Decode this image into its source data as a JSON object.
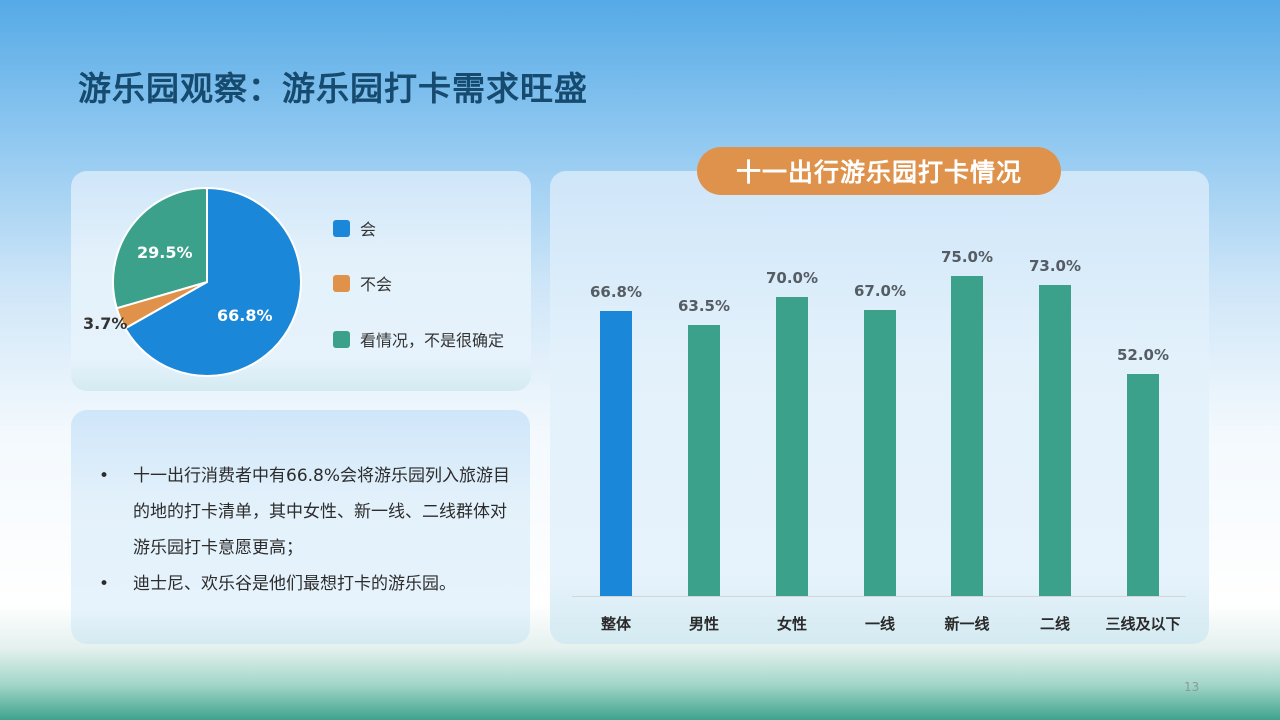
{
  "slide": {
    "title": "游乐园观察：游乐园打卡需求旺盛",
    "page_number": "13"
  },
  "pie": {
    "legend": [
      {
        "label": "会",
        "color": "#1b87d8"
      },
      {
        "label": "不会",
        "color": "#e0924a"
      },
      {
        "label": "看情况，不是很确定",
        "color": "#3ba18a"
      }
    ],
    "labels": {
      "yes": "66.8%",
      "no": "3.7%",
      "unsure": "29.5%"
    }
  },
  "summary": {
    "bullet_glyph": "•",
    "bullets": [
      "十一出行消费者中有66.8%会将游乐园列入旅游目的地的打卡清单，其中女性、新一线、二线群体对游乐园打卡意愿更高；",
      "迪士尼、欢乐谷是他们最想打卡的游乐园。"
    ]
  },
  "bar_chart": {
    "title": "十一出行游乐园打卡情况",
    "bars": [
      {
        "category": "整体",
        "label": "66.8%"
      },
      {
        "category": "男性",
        "label": "63.5%"
      },
      {
        "category": "女性",
        "label": "70.0%"
      },
      {
        "category": "一线",
        "label": "67.0%"
      },
      {
        "category": "新一线",
        "label": "75.0%"
      },
      {
        "category": "二线",
        "label": "73.0%"
      },
      {
        "category": "三线及以下",
        "label": "52.0%"
      }
    ]
  },
  "chart_data": [
    {
      "type": "pie",
      "title": "",
      "categories": [
        "会",
        "不会",
        "看情况，不是很确定"
      ],
      "values": [
        66.8,
        3.7,
        29.5
      ],
      "colors": [
        "#1b87d8",
        "#e0924a",
        "#3ba18a"
      ],
      "unit": "%",
      "legend_position": "right"
    },
    {
      "type": "bar",
      "title": "十一出行游乐园打卡情况",
      "categories": [
        "整体",
        "男性",
        "女性",
        "一线",
        "新一线",
        "二线",
        "三线及以下"
      ],
      "values": [
        66.8,
        63.5,
        70.0,
        67.0,
        75.0,
        73.0,
        52.0
      ],
      "colors": [
        "#1b87d8",
        "#3ba18a",
        "#3ba18a",
        "#3ba18a",
        "#3ba18a",
        "#3ba18a",
        "#3ba18a"
      ],
      "unit": "%",
      "xlabel": "",
      "ylabel": "",
      "ylim": [
        0,
        80
      ],
      "grid": false,
      "data_labels": true
    }
  ]
}
